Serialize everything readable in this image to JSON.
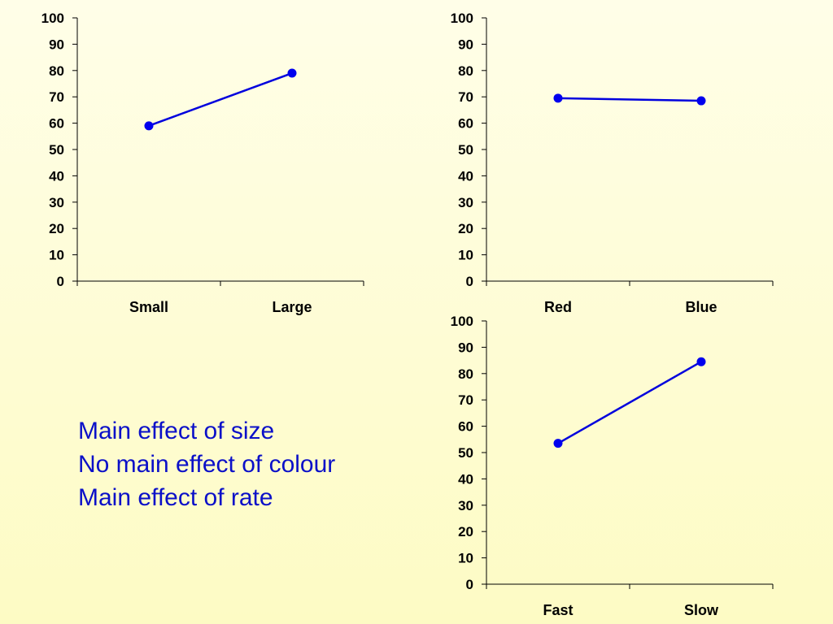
{
  "colors": {
    "line": "#0000dd",
    "marker": "#0000ee",
    "axis": "#000000",
    "text": "#0b10c8"
  },
  "chart_data": [
    {
      "type": "line",
      "categories": [
        "Small",
        "Large"
      ],
      "series": [
        {
          "values": [
            59,
            79
          ]
        }
      ],
      "ylim": [
        0,
        100
      ],
      "yticks": [
        0,
        10,
        20,
        30,
        40,
        50,
        60,
        70,
        80,
        90,
        100
      ],
      "grid": false,
      "legend": "none"
    },
    {
      "type": "line",
      "categories": [
        "Red",
        "Blue"
      ],
      "series": [
        {
          "values": [
            69.5,
            68.5
          ]
        }
      ],
      "ylim": [
        0,
        100
      ],
      "yticks": [
        0,
        10,
        20,
        30,
        40,
        50,
        60,
        70,
        80,
        90,
        100
      ],
      "grid": false,
      "legend": "none"
    },
    {
      "type": "line",
      "categories": [
        "Fast",
        "Slow"
      ],
      "series": [
        {
          "values": [
            53.5,
            84.5
          ]
        }
      ],
      "ylim": [
        0,
        100
      ],
      "yticks": [
        0,
        10,
        20,
        30,
        40,
        50,
        60,
        70,
        80,
        90,
        100
      ],
      "grid": false,
      "legend": "none"
    }
  ],
  "notes": [
    "Main effect of size",
    "No main effect of colour",
    "Main effect of rate"
  ]
}
